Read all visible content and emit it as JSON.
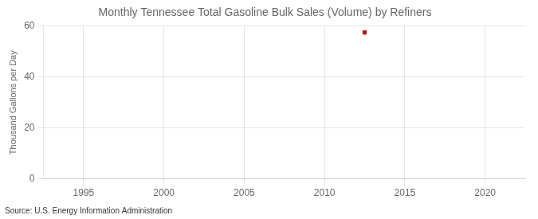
{
  "chart_data": {
    "type": "scatter",
    "title": "Monthly Tennessee Total Gasoline Bulk Sales (Volume) by Refiners",
    "ylabel": "Thousand Gallons per Day",
    "source": "Source: U.S. Energy Information Administration",
    "x": [
      2012.5
    ],
    "values": [
      57.5
    ],
    "color": "#cc0000",
    "marker": "square",
    "xlim": [
      1992.5,
      2022.5
    ],
    "xticks": [
      1995,
      2000,
      2005,
      2010,
      2015,
      2020
    ],
    "ylim": [
      0,
      60
    ],
    "yticks": [
      0,
      20,
      40,
      60
    ],
    "grid": true
  }
}
